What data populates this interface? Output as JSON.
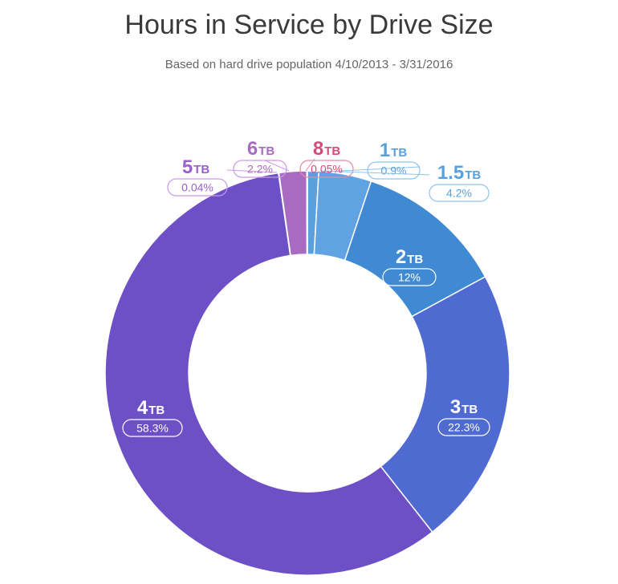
{
  "title": "Hours in Service by Drive Size",
  "subtitle": "Based on hard drive population 4/10/2013 - 3/31/2016",
  "chart_data": {
    "type": "pie",
    "donut": true,
    "title": "Hours in Service by Drive Size",
    "subtitle": "Based on hard drive population 4/10/2013 - 3/31/2016",
    "unit": "TB",
    "slices": [
      {
        "size": "1",
        "value": 0.9,
        "label": "0.9%",
        "color": "#5aa0dc"
      },
      {
        "size": "1.5",
        "value": 4.2,
        "label": "4.2%",
        "color": "#60a3e2"
      },
      {
        "size": "2",
        "value": 12,
        "label": "12%",
        "color": "#3f8ad3"
      },
      {
        "size": "3",
        "value": 22.3,
        "label": "22.3%",
        "color": "#4f6bd1"
      },
      {
        "size": "4",
        "value": 58.3,
        "label": "58.3%",
        "color": "#6e50c6"
      },
      {
        "size": "5",
        "value": 0.04,
        "label": "0.04%",
        "color": "#9a5fd0"
      },
      {
        "size": "6",
        "value": 2.2,
        "label": "2.2%",
        "color": "#a96bc2"
      },
      {
        "size": "8",
        "value": 0.05,
        "label": "0.05%",
        "color": "#cf4f7a"
      }
    ]
  }
}
